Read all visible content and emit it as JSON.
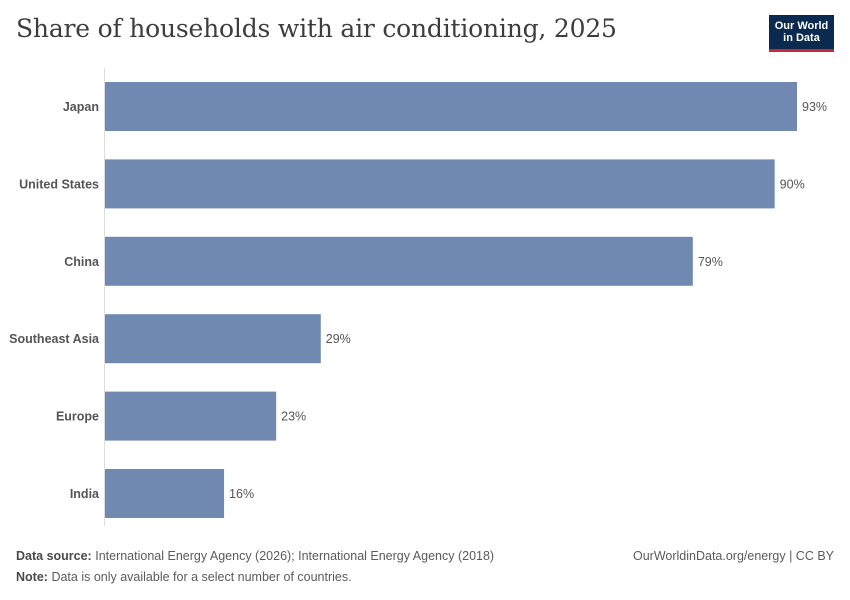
{
  "header": {
    "title": "Share of households with air conditioning, 2025",
    "logo_line1": "Our World",
    "logo_line2": "in Data"
  },
  "chart_data": {
    "type": "bar",
    "orientation": "horizontal",
    "title": "Share of households with air conditioning, 2025",
    "categories": [
      "Japan",
      "United States",
      "China",
      "Southeast Asia",
      "Europe",
      "India"
    ],
    "values": [
      93,
      90,
      79,
      29,
      23,
      16
    ],
    "value_labels": [
      "93%",
      "90%",
      "79%",
      "29%",
      "23%",
      "16%"
    ],
    "unit": "%",
    "xlim": [
      0,
      93
    ],
    "grid": false,
    "bar_color": "#6f89b1"
  },
  "footer": {
    "source_label": "Data source:",
    "source_text": "International Energy Agency (2026); International Energy Agency (2018)",
    "credit": "OurWorldinData.org/energy | CC BY",
    "note_label": "Note:",
    "note_text": "Data is only available for a select number of countries."
  }
}
